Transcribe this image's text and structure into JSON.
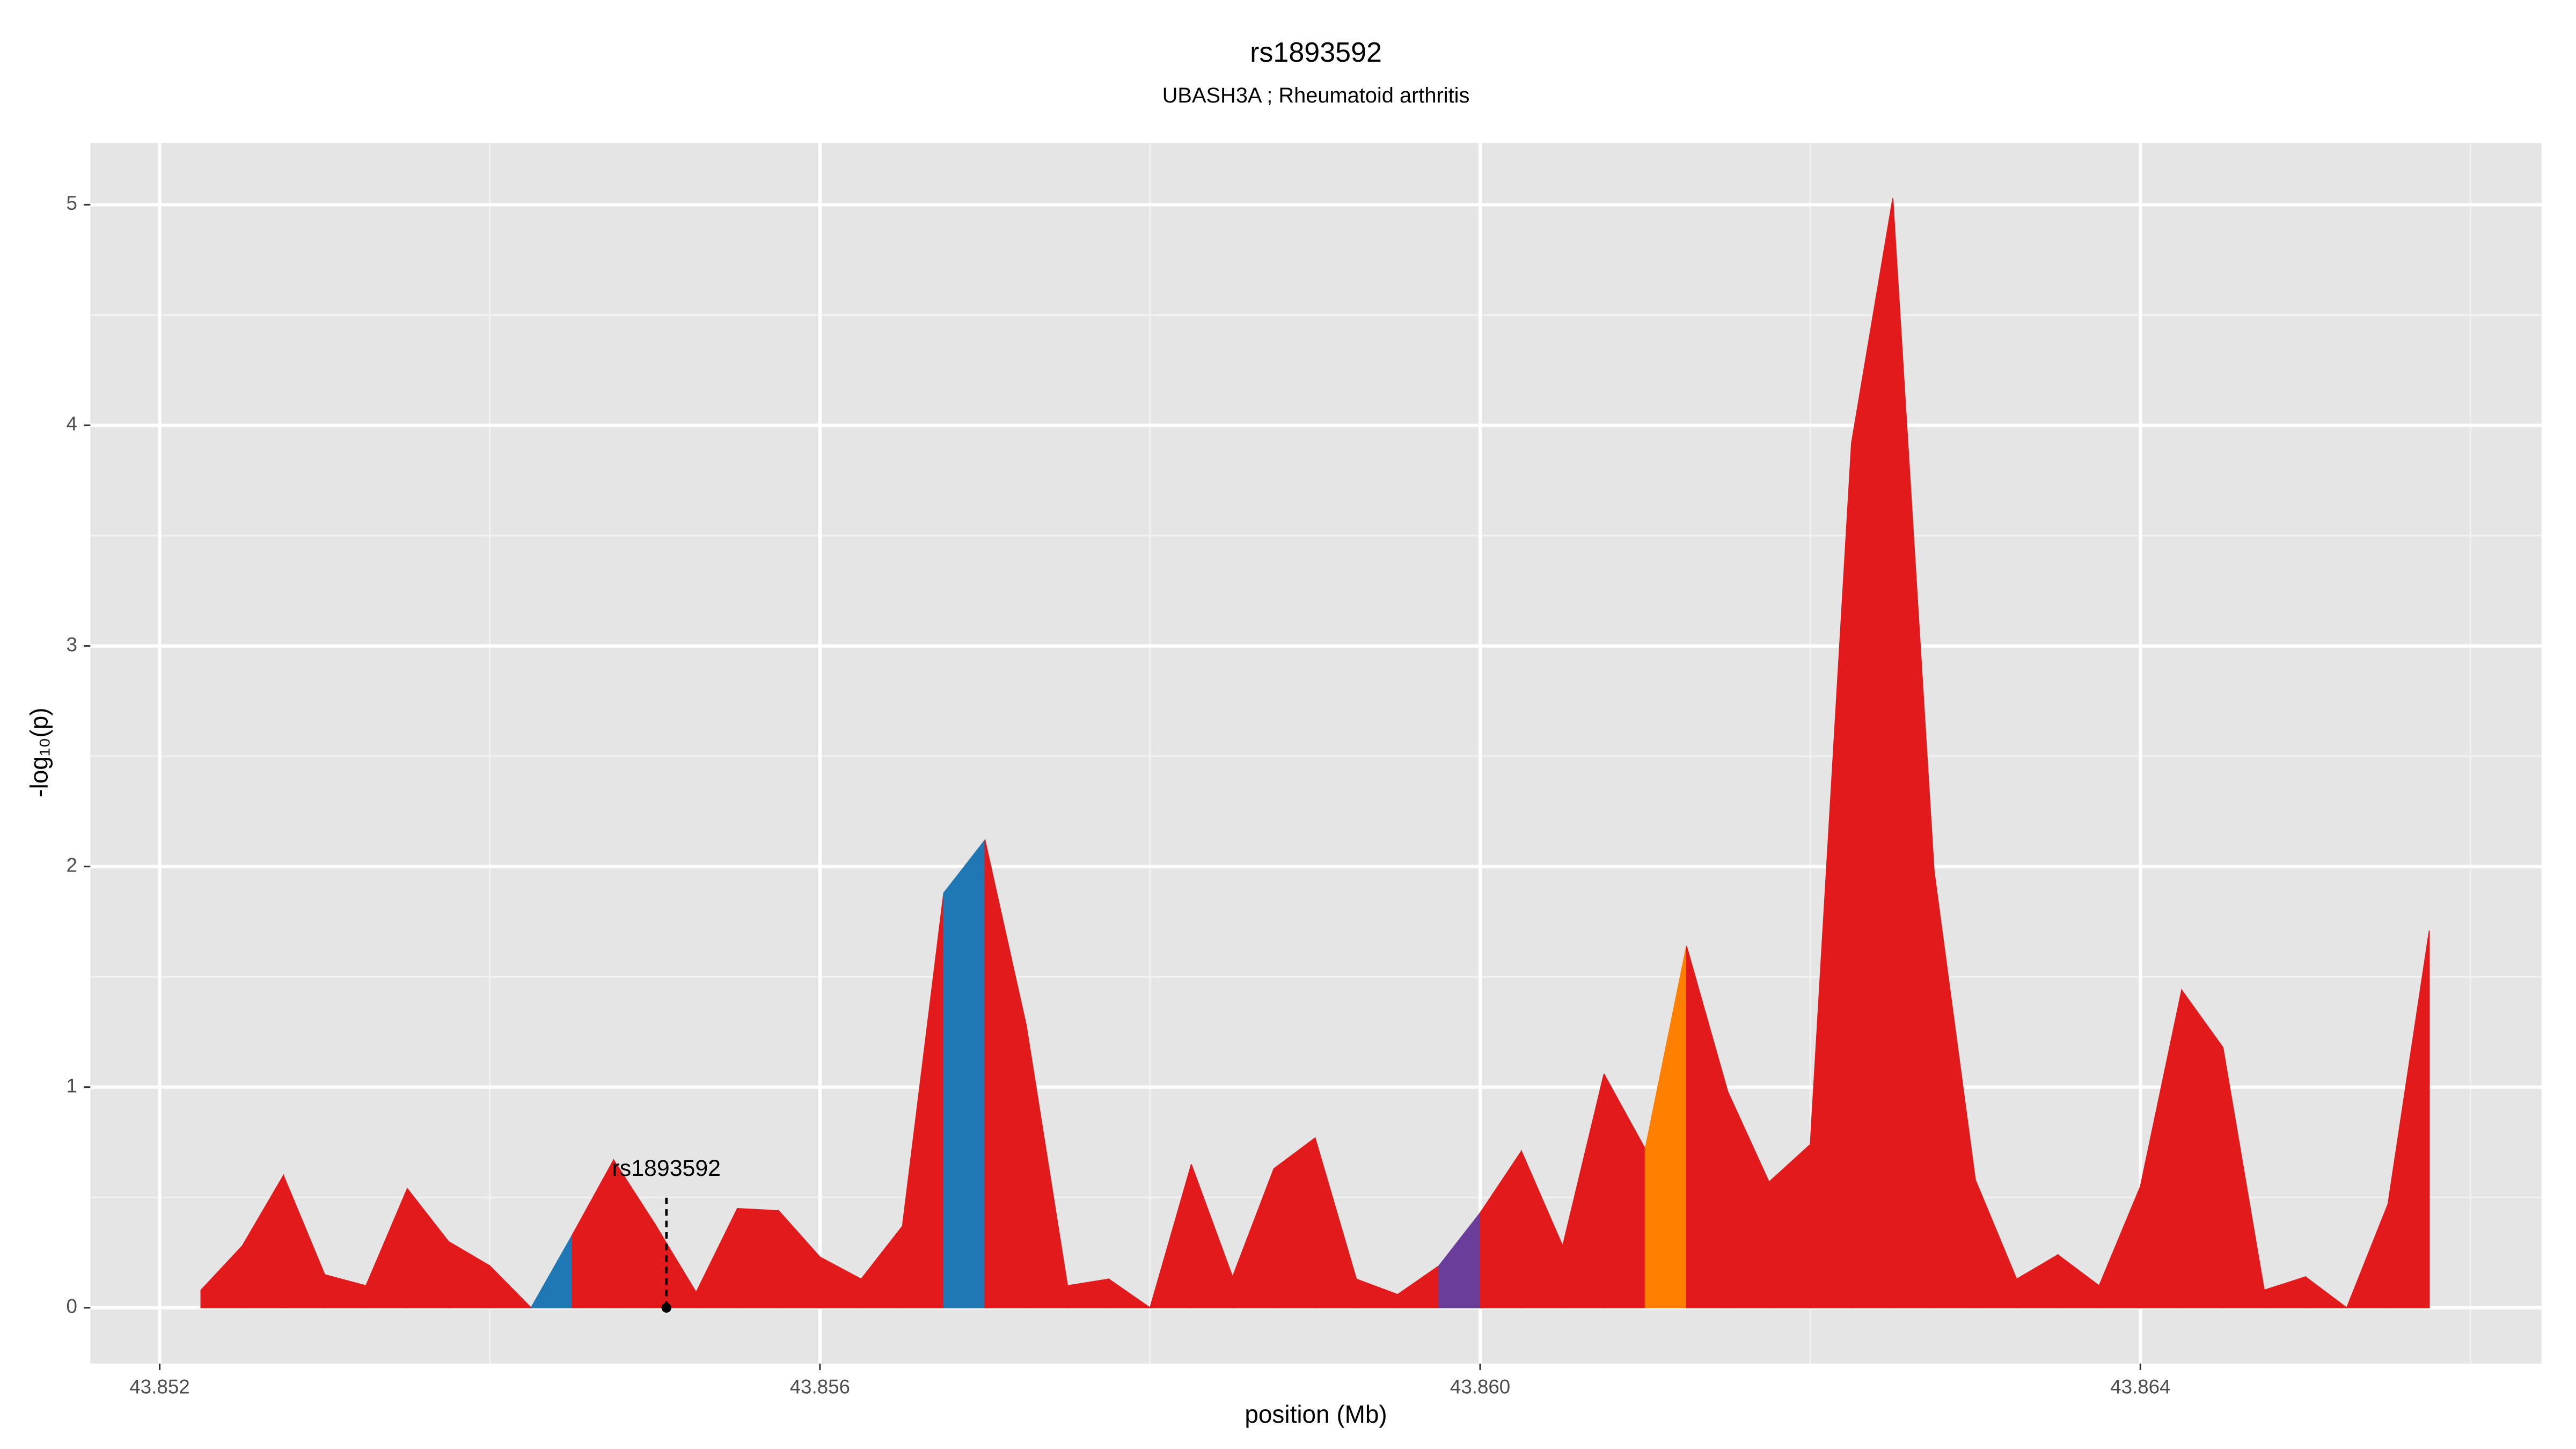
{
  "chart_data": {
    "type": "area",
    "title": "rs1893592",
    "subtitle": "UBASH3A ; Rheumatoid arthritis",
    "xlabel": "position (Mb)",
    "ylabel": "-log₁₀(p)",
    "xlim": [
      43.85158,
      43.86643
    ],
    "ylim": [
      -0.253,
      5.28
    ],
    "xticks": [
      43.852,
      43.856,
      {
        "value": 43.86,
        "label": "43.860"
      },
      43.864
    ],
    "yticks": [
      0,
      1,
      2,
      3,
      4,
      5
    ],
    "x_minor_grid": [
      43.854,
      43.858,
      43.862,
      43.866
    ],
    "y_minor_grid": [
      0.5,
      1.5,
      2.5,
      3.5,
      4.5
    ],
    "grid": true,
    "series": [
      {
        "x": [
          43.85225,
          43.8525,
          43.85275,
          43.853,
          43.85325,
          43.8535,
          43.85375,
          43.854,
          43.85425,
          43.8545,
          43.85475,
          43.855,
          43.85525,
          43.8555,
          43.85575,
          43.856,
          43.85625,
          43.8565,
          43.85675,
          43.857,
          43.85725,
          43.8575,
          43.85775,
          43.858,
          43.85825,
          43.8585,
          43.85875,
          43.859,
          43.85925,
          43.8595,
          43.85975,
          43.86,
          43.86025,
          43.8605,
          43.86075,
          43.861,
          43.86125,
          43.8615,
          43.86175,
          43.862,
          43.86225,
          43.8625,
          43.86275,
          43.863,
          43.86325,
          43.8635,
          43.86375,
          43.864,
          43.86425,
          43.8645,
          43.86475,
          43.865,
          43.86525,
          43.8655,
          43.86575
        ],
        "values": [
          0.08,
          0.28,
          0.6,
          0.15,
          0.1,
          0.54,
          0.3,
          0.19,
          0.0,
          0.33,
          0.67,
          0.38,
          0.07,
          0.45,
          0.44,
          0.23,
          0.13,
          0.37,
          1.88,
          2.12,
          1.28,
          0.1,
          0.13,
          0.0,
          0.65,
          0.14,
          0.63,
          0.77,
          0.13,
          0.06,
          0.19,
          0.43,
          0.71,
          0.28,
          1.06,
          0.72,
          1.64,
          0.98,
          0.57,
          0.74,
          3.92,
          5.03,
          1.98,
          0.58,
          0.13,
          0.24,
          0.1,
          0.55,
          1.44,
          1.18,
          0.08,
          0.14,
          0.0,
          0.47,
          1.71
        ],
        "segment_colors": [
          "#e31a1c",
          "#e31a1c",
          "#e31a1c",
          "#e31a1c",
          "#e31a1c",
          "#e31a1c",
          "#e31a1c",
          "#e31a1c",
          "#1f78b4",
          "#e31a1c",
          "#e31a1c",
          "#e31a1c",
          "#e31a1c",
          "#e31a1c",
          "#e31a1c",
          "#e31a1c",
          "#e31a1c",
          "#e31a1c",
          "#1f78b4",
          "#e31a1c",
          "#e31a1c",
          "#e31a1c",
          "#e31a1c",
          "#e31a1c",
          "#e31a1c",
          "#e31a1c",
          "#e31a1c",
          "#e31a1c",
          "#e31a1c",
          "#e31a1c",
          "#6a3d9a",
          "#e31a1c",
          "#e31a1c",
          "#e31a1c",
          "#e31a1c",
          "#ff7f00",
          "#e31a1c",
          "#e31a1c",
          "#e31a1c",
          "#e31a1c",
          "#e31a1c",
          "#e31a1c",
          "#e31a1c",
          "#e31a1c",
          "#e31a1c",
          "#e31a1c",
          "#e31a1c",
          "#e31a1c",
          "#e31a1c",
          "#e31a1c",
          "#e31a1c",
          "#e31a1c",
          "#e31a1c",
          "#e31a1c"
        ]
      }
    ],
    "annotation": {
      "text": "rs1893592",
      "x": 43.85507,
      "y": 0
    }
  }
}
